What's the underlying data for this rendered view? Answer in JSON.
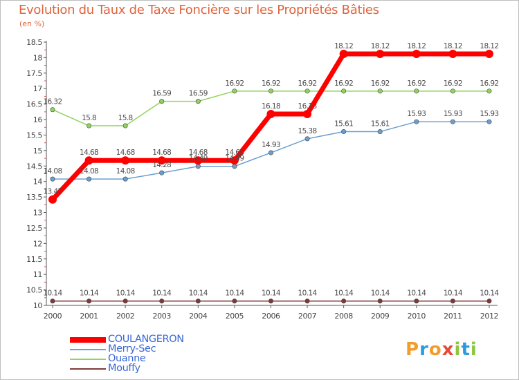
{
  "chart_data": {
    "type": "line",
    "title": "Evolution du Taux de Taxe Foncière sur les Propriétés Bâties",
    "ylabel": "(en %)",
    "xlabel": "",
    "ylim": [
      10,
      18.5
    ],
    "yticks": [
      "10",
      "10.5",
      "11",
      "11.5",
      "12",
      "12.5",
      "13",
      "13.5",
      "14",
      "14.5",
      "15",
      "15.5",
      "16",
      "16.5",
      "17",
      "17.5",
      "18",
      "18.5"
    ],
    "categories": [
      "2000",
      "2001",
      "2002",
      "2003",
      "2004",
      "2005",
      "2006",
      "2007",
      "2008",
      "2009",
      "2010",
      "2011",
      "2012"
    ],
    "series": [
      {
        "name": "Ouanne",
        "color": "#8fd45b",
        "values": [
          16.32,
          15.8,
          15.8,
          16.59,
          16.59,
          16.92,
          16.92,
          16.92,
          16.92,
          16.92,
          16.92,
          16.92,
          16.92
        ],
        "labels": [
          "16.32",
          "15.8",
          "15.8",
          "16.59",
          "16.59",
          "16.92",
          "16.92",
          "16.92",
          "16.92",
          "16.92",
          "16.92",
          "16.92",
          "16.92"
        ]
      },
      {
        "name": "Merry-Sec",
        "color": "#6a9fd0",
        "values": [
          14.08,
          14.08,
          14.08,
          14.28,
          14.49,
          14.49,
          14.93,
          15.38,
          15.61,
          15.61,
          15.93,
          15.93,
          15.93
        ],
        "labels": [
          "14.08",
          "14.08",
          "14.08",
          "14.28",
          "14.49",
          "14.49",
          "14.93",
          "15.38",
          "15.61",
          "15.61",
          "15.93",
          "15.93",
          "15.93"
        ]
      },
      {
        "name": "Mouffy",
        "color": "#7e3a3a",
        "values": [
          10.14,
          10.14,
          10.14,
          10.14,
          10.14,
          10.14,
          10.14,
          10.14,
          10.14,
          10.14,
          10.14,
          10.14,
          10.14
        ],
        "labels": [
          "10.14",
          "10.14",
          "10.14",
          "10.14",
          "10.14",
          "10.14",
          "10.14",
          "10.14",
          "10.14",
          "10.14",
          "10.14",
          "10.14",
          "10.14"
        ]
      },
      {
        "name": "COULANGERON",
        "color": "#ff0000",
        "values": [
          13.42,
          14.68,
          14.68,
          14.68,
          14.68,
          14.68,
          16.18,
          16.18,
          18.12,
          18.12,
          18.12,
          18.12,
          18.12
        ],
        "labels": [
          "13.42",
          "14.68",
          "14.68",
          "14.68",
          "14.68",
          "14.68",
          "16.18",
          "16.18",
          "18.12",
          "18.12",
          "18.12",
          "18.12",
          "18.12"
        ]
      }
    ],
    "legend": [
      "COULANGERON",
      "Merry-Sec",
      "Ouanne",
      "Mouffy"
    ],
    "legend_position": "bottom-left",
    "grid": false
  },
  "brand": {
    "letters": [
      "P",
      "r",
      "o",
      "x",
      "i",
      "t",
      "i"
    ],
    "colors": [
      "#f39c2b",
      "#2b9be0",
      "#f39c2b",
      "#e84a3a",
      "#8cc63f",
      "#2b9be0",
      "#8cc63f"
    ]
  }
}
